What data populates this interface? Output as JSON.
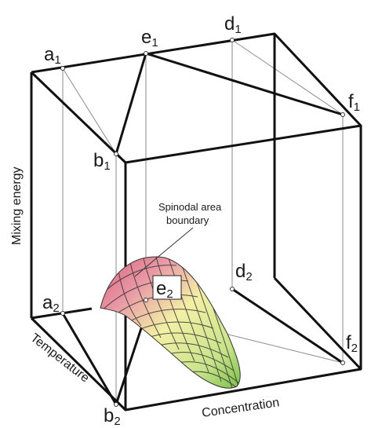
{
  "points": {
    "a1": {
      "letter": "a",
      "index": "1"
    },
    "e1": {
      "letter": "e",
      "index": "1"
    },
    "d1": {
      "letter": "d",
      "index": "1"
    },
    "f1": {
      "letter": "f",
      "index": "1"
    },
    "b1": {
      "letter": "b",
      "index": "1"
    },
    "a2": {
      "letter": "a",
      "index": "2"
    },
    "e2": {
      "letter": "e",
      "index": "2"
    },
    "d2": {
      "letter": "d",
      "index": "2"
    },
    "f2": {
      "letter": "f",
      "index": "2"
    },
    "b2": {
      "letter": "b",
      "index": "2"
    }
  },
  "axes": {
    "vertical": "Mixing energy",
    "depth": "Temperature",
    "horizontal": "Concentration"
  },
  "annotation": {
    "line1": "Spinodal area",
    "line2": "boundary"
  },
  "colors": {
    "frame": "#111111",
    "guide": "#8a8a8a",
    "surface_top": "#d9607e",
    "surface_mid": "#f3f0a6",
    "surface_low": "#7cc04a",
    "mesh": "#333333"
  }
}
